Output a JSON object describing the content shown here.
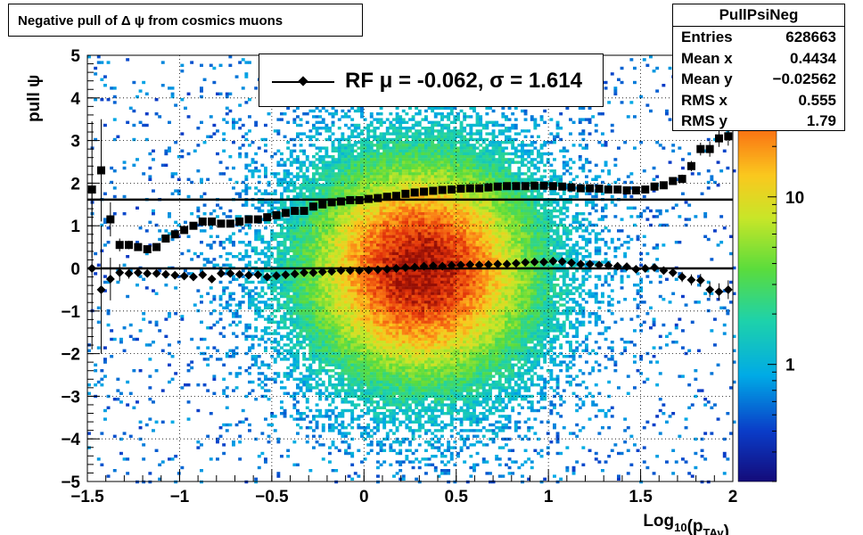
{
  "chart_data": {
    "type": "heatmap",
    "title": "Negative pull of Δ ψ from cosmics muons",
    "xlabel": "Log",
    "xlabel_sub": "10",
    "xlabel_arg_open": "(p",
    "xlabel_arg_sub": "TAv",
    "xlabel_arg_close": ")",
    "ylabel": "pull ψ",
    "xlim": [
      -1.5,
      2.0
    ],
    "ylim": [
      -5,
      5
    ],
    "x_ticks": [
      -1.5,
      -1,
      -0.5,
      0,
      0.5,
      1,
      1.5,
      2
    ],
    "x_tick_labels": [
      "−1.5",
      "−1",
      "−0.5",
      "0",
      "0.5",
      "1",
      "1.5",
      "2"
    ],
    "y_ticks": [
      -5,
      -4,
      -3,
      -2,
      -1,
      0,
      1,
      2,
      3,
      4,
      5
    ],
    "y_tick_labels": [
      "−5",
      "−4",
      "−3",
      "−2",
      "−1",
      "0",
      "1",
      "2",
      "3",
      "4",
      "5"
    ],
    "grid": true,
    "z_scale": "log",
    "z_ticks": [
      1,
      10
    ],
    "z_tick_labels": [
      "1",
      "10"
    ],
    "z_range": [
      0.2,
      70
    ],
    "stats": {
      "name": "PullPsiNeg",
      "rows": [
        {
          "label": "Entries",
          "value": "628663"
        },
        {
          "label": "Mean x",
          "value": "0.4434"
        },
        {
          "label": "Mean y",
          "value": "−0.02562"
        },
        {
          "label": "RMS x",
          "value": "0.555"
        },
        {
          "label": "RMS y",
          "value": "1.79"
        }
      ]
    },
    "legend": {
      "text": "RF μ = -0.062, σ =   1.614",
      "placement": "top-center"
    },
    "mean_series": {
      "marker": "diamond",
      "x": [
        -1.45,
        -1.4,
        -1.35,
        -1.3,
        -1.25,
        -1.2,
        -1.15,
        -1.1,
        -1.05,
        -1.0,
        -0.95,
        -0.9,
        -0.85,
        -0.8,
        -0.75,
        -0.7,
        -0.65,
        -0.6,
        -0.55,
        -0.5,
        -0.45,
        -0.4,
        -0.35,
        -0.3,
        -0.25,
        -0.2,
        -0.15,
        -0.1,
        -0.05,
        0.0,
        0.05,
        0.1,
        0.15,
        0.2,
        0.25,
        0.3,
        0.35,
        0.4,
        0.45,
        0.5,
        0.55,
        0.6,
        0.65,
        0.7,
        0.75,
        0.8,
        0.85,
        0.9,
        0.95,
        1.0,
        1.05,
        1.1,
        1.15,
        1.2,
        1.25,
        1.3,
        1.35,
        1.4,
        1.45,
        1.5,
        1.55,
        1.6,
        1.65,
        1.7,
        1.75,
        1.8,
        1.85,
        1.9,
        1.95,
        2.0
      ],
      "y": [
        0.0,
        -0.5,
        -0.25,
        -0.1,
        -0.12,
        -0.1,
        -0.12,
        -0.12,
        -0.14,
        -0.16,
        -0.18,
        -0.2,
        -0.15,
        -0.25,
        -0.12,
        -0.12,
        -0.14,
        -0.16,
        -0.15,
        -0.2,
        -0.17,
        -0.15,
        -0.13,
        -0.1,
        -0.1,
        -0.08,
        -0.07,
        -0.05,
        -0.05,
        -0.05,
        -0.04,
        -0.03,
        -0.02,
        0.0,
        0.02,
        0.03,
        0.05,
        0.06,
        0.05,
        0.07,
        0.08,
        0.09,
        0.08,
        0.09,
        0.1,
        0.1,
        0.12,
        0.14,
        0.15,
        0.15,
        0.17,
        0.16,
        0.13,
        0.1,
        0.1,
        0.08,
        0.07,
        0.05,
        0.04,
        -0.02,
        0.0,
        0.02,
        -0.05,
        -0.1,
        -0.2,
        -0.27,
        -0.28,
        -0.5,
        -0.55,
        -0.5
      ],
      "yerr": [
        1.9,
        1.5,
        0.5,
        0.2,
        0.12,
        0.1,
        0.08,
        0.06,
        0.05,
        0.05,
        0.04,
        0.04,
        0.03,
        0.03,
        0.03,
        0.02,
        0.02,
        0.02,
        0.02,
        0.02,
        0.02,
        0.02,
        0.02,
        0.02,
        0.02,
        0.02,
        0.02,
        0.02,
        0.02,
        0.02,
        0.02,
        0.02,
        0.02,
        0.02,
        0.02,
        0.02,
        0.02,
        0.02,
        0.02,
        0.02,
        0.02,
        0.02,
        0.02,
        0.02,
        0.02,
        0.02,
        0.02,
        0.02,
        0.02,
        0.03,
        0.03,
        0.03,
        0.03,
        0.03,
        0.04,
        0.04,
        0.04,
        0.05,
        0.05,
        0.06,
        0.07,
        0.08,
        0.09,
        0.1,
        0.12,
        0.13,
        0.15,
        0.18,
        0.2,
        0.22
      ]
    },
    "rms_series": {
      "marker": "square",
      "x": [
        -1.45,
        -1.4,
        -1.35,
        -1.3,
        -1.25,
        -1.2,
        -1.15,
        -1.1,
        -1.05,
        -1.0,
        -0.95,
        -0.9,
        -0.85,
        -0.8,
        -0.75,
        -0.7,
        -0.65,
        -0.6,
        -0.55,
        -0.5,
        -0.45,
        -0.4,
        -0.35,
        -0.3,
        -0.25,
        -0.2,
        -0.15,
        -0.1,
        -0.05,
        0.0,
        0.05,
        0.1,
        0.15,
        0.2,
        0.25,
        0.3,
        0.35,
        0.4,
        0.45,
        0.5,
        0.55,
        0.6,
        0.65,
        0.7,
        0.75,
        0.8,
        0.85,
        0.9,
        0.95,
        1.0,
        1.05,
        1.1,
        1.15,
        1.2,
        1.25,
        1.3,
        1.35,
        1.4,
        1.45,
        1.5,
        1.55,
        1.6,
        1.65,
        1.7,
        1.75,
        1.8,
        1.85,
        1.9,
        1.95,
        2.0
      ],
      "y": [
        1.85,
        2.3,
        1.15,
        0.55,
        0.55,
        0.5,
        0.45,
        0.5,
        0.7,
        0.8,
        0.9,
        1.0,
        1.1,
        1.1,
        1.05,
        1.05,
        1.1,
        1.15,
        1.15,
        1.2,
        1.25,
        1.3,
        1.35,
        1.35,
        1.45,
        1.5,
        1.55,
        1.57,
        1.6,
        1.6,
        1.63,
        1.65,
        1.68,
        1.7,
        1.75,
        1.78,
        1.8,
        1.82,
        1.84,
        1.85,
        1.87,
        1.88,
        1.88,
        1.9,
        1.92,
        1.93,
        1.93,
        1.93,
        1.94,
        1.94,
        1.93,
        1.92,
        1.9,
        1.88,
        1.88,
        1.87,
        1.85,
        1.85,
        1.83,
        1.83,
        1.85,
        1.92,
        1.95,
        2.05,
        2.1,
        2.4,
        2.8,
        2.8,
        3.05,
        3.1
      ],
      "yerr": [
        1.6,
        1.2,
        0.4,
        0.15,
        0.1,
        0.08,
        0.06,
        0.05,
        0.04,
        0.04,
        0.03,
        0.03,
        0.03,
        0.02,
        0.02,
        0.02,
        0.02,
        0.02,
        0.02,
        0.02,
        0.02,
        0.02,
        0.02,
        0.02,
        0.02,
        0.02,
        0.02,
        0.02,
        0.02,
        0.02,
        0.02,
        0.02,
        0.02,
        0.02,
        0.02,
        0.02,
        0.02,
        0.02,
        0.02,
        0.02,
        0.02,
        0.02,
        0.02,
        0.02,
        0.02,
        0.02,
        0.02,
        0.02,
        0.02,
        0.02,
        0.03,
        0.03,
        0.03,
        0.03,
        0.03,
        0.03,
        0.04,
        0.04,
        0.04,
        0.05,
        0.05,
        0.06,
        0.07,
        0.08,
        0.1,
        0.12,
        0.15,
        0.18,
        0.2,
        0.22
      ]
    },
    "fit_line_mean": 0.0,
    "fit_line_sigma": 1.614
  }
}
